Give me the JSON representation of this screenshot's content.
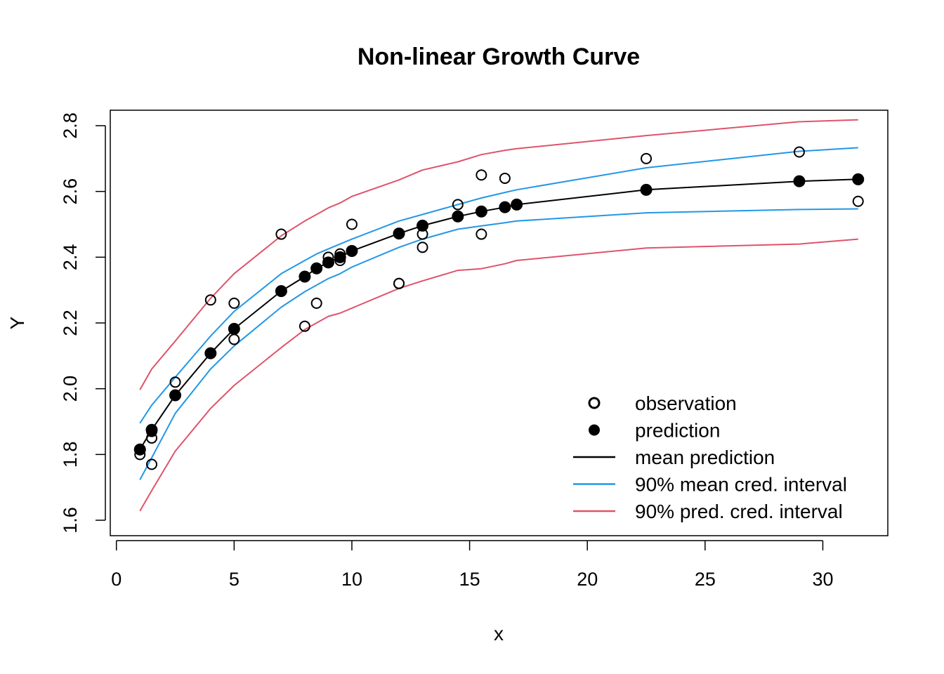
{
  "chart_data": {
    "type": "scatter",
    "title": "Non-linear Growth Curve",
    "xlabel": "x",
    "ylabel": "Y",
    "xlim": [
      -0.26,
      32.76
    ],
    "ylim": [
      1.553,
      2.847
    ],
    "xticks": [
      0,
      5,
      10,
      15,
      20,
      25,
      30
    ],
    "yticks": [
      1.6,
      1.8,
      2.0,
      2.2,
      2.4,
      2.6,
      2.8
    ],
    "colors": {
      "observation": "#000000",
      "prediction": "#000000",
      "mean_prediction": "#000000",
      "mean_interval": "#2297E6",
      "pred_interval": "#DF536B"
    },
    "observations": {
      "x": [
        1.0,
        1.5,
        1.5,
        1.5,
        2.5,
        4.0,
        5.0,
        5.0,
        7.0,
        8.0,
        8.5,
        9.0,
        9.5,
        9.5,
        10.0,
        12.0,
        12.0,
        13.0,
        13.0,
        14.5,
        15.5,
        15.5,
        16.5,
        17.0,
        22.5,
        29.0,
        31.5
      ],
      "y": [
        1.8,
        1.85,
        1.87,
        1.77,
        2.02,
        2.27,
        2.15,
        2.26,
        2.47,
        2.19,
        2.26,
        2.4,
        2.39,
        2.41,
        2.5,
        2.32,
        2.32,
        2.43,
        2.47,
        2.56,
        2.65,
        2.47,
        2.64,
        2.56,
        2.7,
        2.72,
        2.57
      ]
    },
    "predictions": {
      "x": [
        1.0,
        1.5,
        2.5,
        4.0,
        5.0,
        7.0,
        8.0,
        8.5,
        9.0,
        9.5,
        10.0,
        12.0,
        13.0,
        14.5,
        15.5,
        16.5,
        17.0,
        22.5,
        29.0,
        31.5
      ],
      "y": [
        1.815,
        1.875,
        1.98,
        2.108,
        2.182,
        2.297,
        2.341,
        2.366,
        2.384,
        2.4,
        2.419,
        2.472,
        2.496,
        2.524,
        2.539,
        2.552,
        2.56,
        2.605,
        2.631,
        2.637
      ]
    },
    "mean_interval_upper": [
      1.895,
      1.95,
      2.035,
      2.16,
      2.235,
      2.35,
      2.39,
      2.41,
      2.425,
      2.44,
      2.455,
      2.51,
      2.53,
      2.56,
      2.58,
      2.597,
      2.605,
      2.672,
      2.722,
      2.733
    ],
    "mean_interval_lower": [
      1.723,
      1.79,
      1.925,
      2.06,
      2.13,
      2.248,
      2.295,
      2.315,
      2.335,
      2.35,
      2.37,
      2.43,
      2.455,
      2.485,
      2.495,
      2.505,
      2.51,
      2.535,
      2.545,
      2.547
    ],
    "pred_interval_upper": [
      1.997,
      2.06,
      2.145,
      2.275,
      2.35,
      2.465,
      2.51,
      2.53,
      2.55,
      2.565,
      2.585,
      2.635,
      2.665,
      2.69,
      2.712,
      2.725,
      2.73,
      2.77,
      2.812,
      2.818
    ],
    "pred_interval_lower": [
      1.628,
      1.69,
      1.81,
      1.94,
      2.01,
      2.125,
      2.18,
      2.2,
      2.22,
      2.23,
      2.245,
      2.305,
      2.328,
      2.36,
      2.365,
      2.38,
      2.39,
      2.428,
      2.44,
      2.455
    ],
    "legend": {
      "position": "bottom-right",
      "items": [
        {
          "label": "observation",
          "kind": "open-circle"
        },
        {
          "label": "prediction",
          "kind": "filled-circle"
        },
        {
          "label": "mean prediction",
          "kind": "line",
          "color": "#000000"
        },
        {
          "label": "90% mean cred. interval",
          "kind": "line",
          "color": "#2297E6"
        },
        {
          "label": "90% pred. cred. interval",
          "kind": "line",
          "color": "#DF536B"
        }
      ]
    }
  }
}
